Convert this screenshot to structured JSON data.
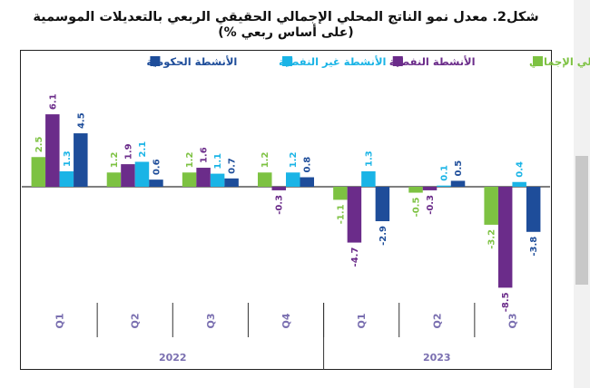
{
  "title_line1": "شكل2. معدل نمو الناتج المحلي الإجمالي الحقيقي الربعي بالتعديلات الموسمية",
  "title_line2": "(على أساس ربعي %)",
  "chart_data": {
    "type": "bar",
    "categories": [
      "Q1",
      "Q2",
      "Q3",
      "Q4",
      "Q1",
      "Q2",
      "Q3"
    ],
    "year_groups": [
      {
        "label": "2022",
        "count": 4
      },
      {
        "label": "2023",
        "count": 3
      }
    ],
    "series": [
      {
        "name": "الناتج المحلي الإجمالي",
        "color": "#7dc242",
        "values": [
          2.5,
          1.2,
          1.2,
          1.2,
          -1.1,
          -0.5,
          -3.2
        ]
      },
      {
        "name": "الأنشطة النفطية",
        "color": "#6b2c8a",
        "values": [
          6.1,
          1.9,
          1.6,
          -0.3,
          -4.7,
          -0.3,
          -8.5
        ]
      },
      {
        "name": "الأنشطة غير النفطية",
        "color": "#1ab4e6",
        "values": [
          1.3,
          2.1,
          1.1,
          1.2,
          1.3,
          0.1,
          0.4
        ]
      },
      {
        "name": "الأنشطة الحكومية",
        "color": "#1e4d9a",
        "values": [
          4.5,
          0.6,
          0.7,
          0.8,
          -2.9,
          0.5,
          -3.8
        ]
      }
    ],
    "ylim": [
      -8.5,
      6.1
    ],
    "grid": false,
    "legend_position": "top"
  }
}
